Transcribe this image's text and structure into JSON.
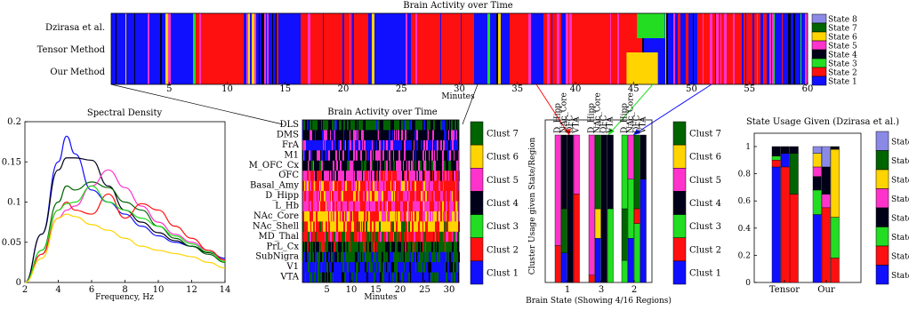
{
  "palette": {
    "clusters": [
      "#1010ff",
      "#ff1010",
      "#22dd22",
      "#000018",
      "#ff33cc",
      "#ffd400",
      "#006400"
    ],
    "states": [
      "#1010ff",
      "#ff1010",
      "#22dd22",
      "#000018",
      "#ff33cc",
      "#ffd400",
      "#006400",
      "#8a8ae6"
    ]
  },
  "top_panel": {
    "title": "Brain Activity over Time",
    "rows": [
      "Dzirasa et al.",
      "Tensor Method",
      "Our Method"
    ],
    "xlabel": "Minutes",
    "xticks": [
      "5",
      "10",
      "15",
      "20",
      "25",
      "30",
      "35",
      "40",
      "45",
      "50",
      "55",
      "60"
    ],
    "legend": [
      "State 8",
      "State 7",
      "State 6",
      "State 5",
      "State 4",
      "State 3",
      "State 2",
      "State 1"
    ]
  },
  "chart_data": [
    {
      "type": "line",
      "title": "Spectral Density",
      "xlabel": "Frequency, Hz",
      "ylabel": "",
      "xlim": [
        2,
        14
      ],
      "ylim": [
        0,
        0.2
      ],
      "xticks": [
        "2",
        "4",
        "6",
        "8",
        "10",
        "12",
        "14"
      ],
      "yticks": [
        "0",
        "0.05",
        "0.1",
        "0.15",
        "0.2"
      ],
      "x": [
        2,
        3,
        4,
        4.5,
        5,
        6,
        7,
        8,
        9,
        10,
        11,
        12,
        13,
        14
      ],
      "series": [
        {
          "color": "#1010ff",
          "values": [
            0.0,
            0.06,
            0.15,
            0.182,
            0.16,
            0.115,
            0.1,
            0.085,
            0.07,
            0.058,
            0.05,
            0.045,
            0.038,
            0.03
          ]
        },
        {
          "color": "#000018",
          "values": [
            0.0,
            0.06,
            0.14,
            0.155,
            0.155,
            0.152,
            0.12,
            0.09,
            0.075,
            0.062,
            0.052,
            0.045,
            0.037,
            0.028
          ]
        },
        {
          "color": "#006400",
          "values": [
            0.0,
            0.04,
            0.1,
            0.12,
            0.115,
            0.125,
            0.118,
            0.1,
            0.09,
            0.07,
            0.055,
            0.045,
            0.035,
            0.025
          ]
        },
        {
          "color": "#ff33cc",
          "values": [
            0.0,
            0.035,
            0.08,
            0.09,
            0.095,
            0.12,
            0.14,
            0.118,
            0.095,
            0.075,
            0.06,
            0.05,
            0.04,
            0.028
          ]
        },
        {
          "color": "#ff1010",
          "values": [
            0.0,
            0.035,
            0.09,
            0.1,
            0.09,
            0.085,
            0.11,
            0.08,
            0.098,
            0.09,
            0.07,
            0.055,
            0.04,
            0.028
          ]
        },
        {
          "color": "#22dd22",
          "values": [
            0.0,
            0.04,
            0.09,
            0.098,
            0.1,
            0.12,
            0.1,
            0.09,
            0.08,
            0.07,
            0.058,
            0.048,
            0.038,
            0.026
          ]
        },
        {
          "color": "#ffd400",
          "values": [
            0.0,
            0.03,
            0.08,
            0.085,
            0.082,
            0.072,
            0.065,
            0.055,
            0.045,
            0.04,
            0.036,
            0.032,
            0.025,
            0.018
          ]
        }
      ]
    },
    {
      "type": "heatmap",
      "title": "Brain Activity over Time",
      "xlabel": "Minutes",
      "ylabel": "",
      "rows": [
        "DLS",
        "DMS",
        "FrA",
        "M1",
        "M_OFC_Cx",
        "OFC",
        "Basal_Amy",
        "D_Hipp",
        "L_Hb",
        "NAc_Core",
        "NAc_Shell",
        "MD_Thal",
        "PrL_Cx",
        "SubNigra",
        "V1",
        "VTA"
      ],
      "xticks": [
        "5",
        "10",
        "15",
        "20",
        "25",
        "30"
      ],
      "xlim": [
        0,
        32
      ],
      "legend": [
        "Clust 7",
        "Clust 6",
        "Clust 5",
        "Clust 4",
        "Clust 3",
        "Clust 2",
        "Clust 1"
      ]
    },
    {
      "type": "bar",
      "title": "",
      "ylabel": "Cluster Usage given State/Region",
      "xlabel": "Brain State (Showing 4/16 Regions)",
      "categories": [
        "1",
        "3",
        "2"
      ],
      "region_labels": [
        "D_Hipp",
        "NAc_Core",
        "OFC",
        "VTA"
      ],
      "state_color_index": [
        0,
        2,
        1
      ],
      "bars": [
        [
          [
            1,
            0.25
          ],
          [
            4,
            0.75
          ]
        ],
        [
          [
            0,
            0.2
          ],
          [
            6,
            0.3
          ],
          [
            3,
            0.5
          ]
        ],
        [
          [
            3,
            1.0
          ]
        ],
        [
          [
            1,
            0.6
          ],
          [
            4,
            0.4
          ]
        ],
        [
          [
            1,
            0.05
          ],
          [
            4,
            0.95
          ]
        ],
        [
          [
            0,
            0.3
          ],
          [
            5,
            0.2
          ],
          [
            6,
            0.5
          ]
        ],
        [
          [
            3,
            1.0
          ]
        ],
        [
          [
            2,
            0.5
          ],
          [
            3,
            0.5
          ]
        ],
        [
          [
            2,
            0.15
          ],
          [
            6,
            0.35
          ],
          [
            2,
            0.5
          ]
        ],
        [
          [
            0,
            0.3
          ],
          [
            2,
            0.4
          ],
          [
            4,
            0.3
          ]
        ],
        [
          [
            2,
            0.4
          ],
          [
            1,
            0.1
          ],
          [
            6,
            0.5
          ]
        ],
        [
          [
            0,
            0.7
          ],
          [
            3,
            0.3
          ]
        ]
      ],
      "legend": [
        "Clust 7",
        "Clust 6",
        "Clust 5",
        "Clust 4",
        "Clust 3",
        "Clust 2",
        "Clust 1"
      ]
    },
    {
      "type": "bar",
      "title": "State Usage Given (Dzirasa et al.)",
      "categories": [
        "Tensor",
        "Our"
      ],
      "ylim": [
        0,
        1
      ],
      "yticks": [
        "0",
        "0.2",
        "0.4",
        "0.6",
        "0.8",
        "1"
      ],
      "bars": [
        [
          [
            0,
            0.85
          ],
          [
            1,
            0.05
          ],
          [
            2,
            0.03
          ],
          [
            3,
            0.07
          ]
        ],
        [
          [
            1,
            0.85
          ],
          [
            0,
            0.1
          ],
          [
            3,
            0.05
          ]
        ],
        [
          [
            1,
            0.65
          ],
          [
            6,
            0.3
          ],
          [
            3,
            0.05
          ]
        ],
        [
          [
            0,
            0.5
          ],
          [
            2,
            0.18
          ],
          [
            3,
            0.1
          ],
          [
            4,
            0.07
          ],
          [
            5,
            0.1
          ],
          [
            7,
            0.05
          ]
        ],
        [
          [
            1,
            0.55
          ],
          [
            4,
            0.1
          ],
          [
            3,
            0.2
          ],
          [
            7,
            0.15
          ]
        ],
        [
          [
            1,
            0.18
          ],
          [
            2,
            0.3
          ],
          [
            5,
            0.5
          ],
          [
            3,
            0.02
          ]
        ]
      ],
      "legend": [
        "State",
        "State",
        "State",
        "State",
        "State",
        "State",
        "State",
        "State"
      ]
    }
  ]
}
